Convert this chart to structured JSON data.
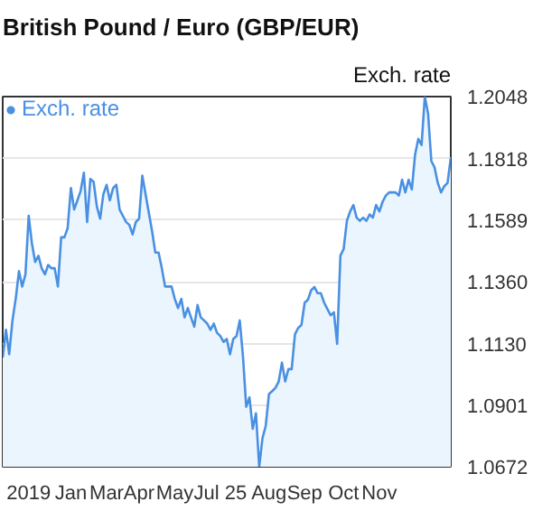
{
  "chart_data": {
    "type": "area",
    "title": "British Pound / Euro (GBP/EUR)",
    "ylabel": "Exch. rate",
    "categories": [
      null,
      null,
      null,
      null,
      null,
      null,
      null,
      null,
      "2019",
      null,
      null,
      null,
      null,
      null,
      null,
      null,
      null,
      null,
      null,
      null,
      null,
      "Jan",
      null,
      null,
      null,
      null,
      null,
      null,
      null,
      null,
      null,
      null,
      "Mar",
      null,
      null,
      null,
      null,
      null,
      null,
      null,
      null,
      null,
      "Apr",
      null,
      null,
      null,
      null,
      null,
      null,
      null,
      null,
      null,
      null,
      "May",
      null,
      null,
      null,
      null,
      null,
      null,
      null,
      null,
      null,
      null,
      null,
      null,
      null,
      "Jul 25",
      null,
      null,
      null,
      null,
      null,
      null,
      null,
      null,
      null,
      null,
      null,
      null,
      null,
      null,
      "Aug",
      null,
      null,
      null,
      null,
      null,
      null,
      null,
      null,
      null,
      null,
      "Sep",
      null,
      null,
      null,
      null,
      null,
      null,
      null,
      null,
      null,
      null,
      null,
      "Oct",
      null,
      null,
      null,
      null,
      null,
      null,
      null,
      null,
      null,
      null,
      "Nov",
      null,
      null,
      null,
      null,
      null,
      null,
      null,
      null,
      null,
      null,
      null,
      null,
      null,
      null,
      null,
      null,
      null,
      null,
      null,
      null,
      null,
      null
    ],
    "series": [
      {
        "name": "Exch. rate",
        "color": "#4a90e2",
        "values": [
          1.1078,
          1.1181,
          1.109,
          1.1216,
          1.1296,
          1.1399,
          1.1342,
          1.1387,
          1.1605,
          1.1502,
          1.1433,
          1.1456,
          1.141,
          1.1387,
          1.1422,
          1.141,
          1.141,
          1.1342,
          1.1525,
          1.1525,
          1.1559,
          1.1708,
          1.1628,
          1.1662,
          1.1697,
          1.1765,
          1.1582,
          1.1742,
          1.1731,
          1.1639,
          1.1594,
          1.1685,
          1.172,
          1.1662,
          1.1708,
          1.172,
          1.1628,
          1.1605,
          1.1582,
          1.1571,
          1.1536,
          1.1582,
          1.1594,
          1.1754,
          1.1685,
          1.1616,
          1.1548,
          1.1468,
          1.1468,
          1.141,
          1.1342,
          1.1342,
          1.1342,
          1.1296,
          1.1262,
          1.1296,
          1.1227,
          1.1262,
          1.1227,
          1.1193,
          1.1273,
          1.1227,
          1.1216,
          1.1204,
          1.1181,
          1.1204,
          1.117,
          1.1158,
          1.1136,
          1.1147,
          1.109,
          1.1147,
          1.1158,
          1.1216,
          1.1082,
          1.0895,
          1.093,
          1.0813,
          1.0871,
          1.0672,
          1.0778,
          1.0824,
          1.0942,
          1.0953,
          1.0965,
          1.0989,
          1.1059,
          1.0989,
          1.1035,
          1.1035,
          1.1164,
          1.1188,
          1.1199,
          1.1282,
          1.1293,
          1.1328,
          1.134,
          1.1317,
          1.1317,
          1.1282,
          1.1258,
          1.1235,
          1.1246,
          1.1129,
          1.1457,
          1.1481,
          1.1586,
          1.1621,
          1.1645,
          1.1598,
          1.1586,
          1.1598,
          1.1586,
          1.161,
          1.1598,
          1.1645,
          1.1621,
          1.1657,
          1.168,
          1.1692,
          1.1692,
          1.1692,
          1.168,
          1.1739,
          1.1692,
          1.1739,
          1.1703,
          1.1832,
          1.1891,
          1.1868,
          1.2048,
          1.1985,
          1.1809,
          1.1785,
          1.1727,
          1.1692,
          1.1715,
          1.1727,
          1.1821
        ]
      }
    ],
    "ylim": [
      1.0672,
      1.2048
    ],
    "yticks": [
      {
        "value": 1.0672,
        "label": "1.0672"
      },
      {
        "value": 1.0901,
        "label": "1.0901"
      },
      {
        "value": 1.113,
        "label": "1.1130"
      },
      {
        "value": 1.136,
        "label": "1.1360"
      },
      {
        "value": 1.1589,
        "label": "1.1589"
      },
      {
        "value": 1.1818,
        "label": "1.1818"
      },
      {
        "value": 1.2048,
        "label": "1.2048"
      }
    ],
    "grid": "y",
    "legend": "top left",
    "marker": "none",
    "line_style": "solid"
  }
}
